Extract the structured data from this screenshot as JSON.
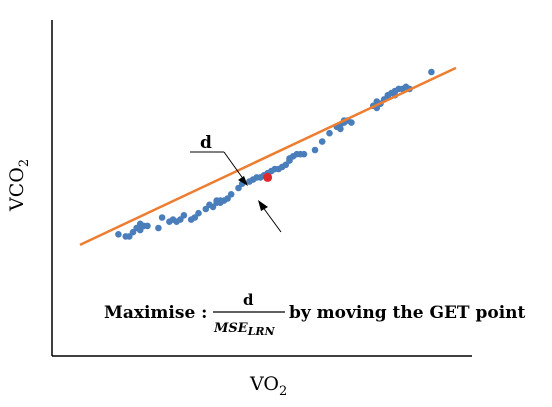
{
  "chart_data": {
    "type": "scatter",
    "xlabel": "VO",
    "xlabel_sub": "2",
    "ylabel": "VCO",
    "ylabel_sub": "2",
    "xlim": [
      0,
      100
    ],
    "ylim": [
      0,
      100
    ],
    "grid": false,
    "point_color": "#4a7ebb",
    "line_color": "#ed7d31",
    "get_point_color": "#e0272b",
    "points": [
      [
        10,
        25
      ],
      [
        12,
        24
      ],
      [
        13,
        24
      ],
      [
        14,
        26
      ],
      [
        15,
        28
      ],
      [
        16,
        27
      ],
      [
        16,
        30
      ],
      [
        17,
        29
      ],
      [
        18,
        29
      ],
      [
        21,
        28
      ],
      [
        22,
        33
      ],
      [
        24,
        31
      ],
      [
        25,
        32
      ],
      [
        26,
        31
      ],
      [
        27,
        32
      ],
      [
        28,
        34
      ],
      [
        30,
        32
      ],
      [
        31,
        33
      ],
      [
        32,
        35
      ],
      [
        34,
        37
      ],
      [
        35,
        39
      ],
      [
        36,
        38
      ],
      [
        37,
        40
      ],
      [
        37,
        41
      ],
      [
        38,
        41
      ],
      [
        40,
        42
      ],
      [
        41,
        44
      ],
      [
        43,
        47
      ],
      [
        44,
        49
      ],
      [
        46,
        50
      ],
      [
        47,
        51
      ],
      [
        48,
        52
      ],
      [
        49,
        52
      ],
      [
        50,
        53
      ],
      [
        51,
        54
      ],
      [
        52,
        55
      ],
      [
        53,
        56
      ],
      [
        54,
        56
      ],
      [
        55,
        57
      ],
      [
        56,
        58
      ],
      [
        57,
        60
      ],
      [
        57,
        61
      ],
      [
        58,
        62
      ],
      [
        59,
        63
      ],
      [
        60,
        63
      ],
      [
        61,
        63
      ],
      [
        64,
        65
      ],
      [
        66,
        69
      ],
      [
        68,
        73
      ],
      [
        70,
        76
      ],
      [
        71,
        77
      ],
      [
        71,
        75
      ],
      [
        72,
        78
      ],
      [
        72,
        79
      ],
      [
        73,
        79
      ],
      [
        74,
        78
      ],
      [
        80,
        86
      ],
      [
        81,
        88
      ],
      [
        81,
        85
      ],
      [
        82,
        87
      ],
      [
        83,
        89
      ],
      [
        84,
        91
      ],
      [
        84,
        90
      ],
      [
        85,
        92
      ],
      [
        86,
        93
      ],
      [
        86,
        91
      ],
      [
        87,
        94
      ],
      [
        88,
        94
      ],
      [
        89,
        95
      ],
      [
        90,
        94
      ],
      [
        96,
        102
      ],
      [
        16,
        28
      ],
      [
        38,
        40
      ],
      [
        39,
        41
      ]
    ],
    "fit_line": {
      "x": [
        0,
        100
      ],
      "y": [
        20,
        104
      ]
    },
    "get_point": [
      51,
      52
    ],
    "annotation_label": "d",
    "formula": {
      "prefix": "Maximise :",
      "numerator": "d",
      "denominator": "MSE",
      "denominator_sub": "LRN",
      "suffix": "by moving the GET point"
    }
  }
}
